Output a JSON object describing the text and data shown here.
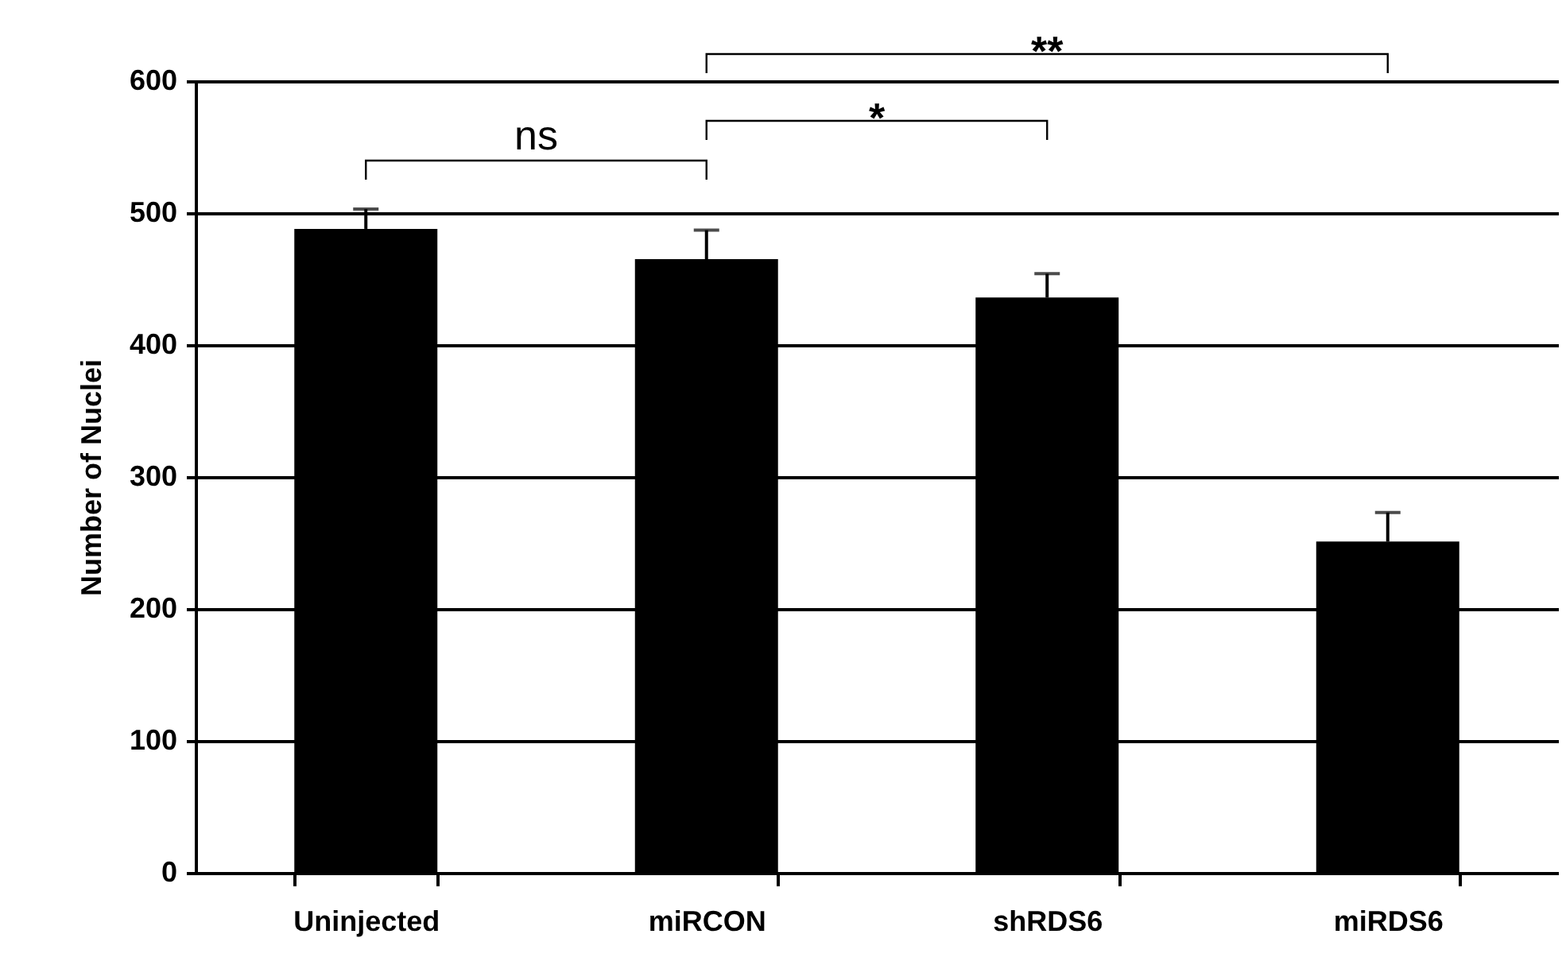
{
  "chart_data": {
    "type": "bar",
    "ylabel": "Number of Nuclei",
    "categories": [
      "Uninjected",
      "miRCON",
      "shRDS6",
      "miRDS6"
    ],
    "values": [
      488,
      465,
      436,
      251
    ],
    "errors": [
      [
        488,
        503
      ],
      [
        465,
        487
      ],
      [
        436,
        454
      ],
      [
        251,
        273
      ]
    ],
    "color": "#000000",
    "ylim": [
      0,
      600
    ],
    "yticks": [
      0,
      100,
      200,
      300,
      400,
      500,
      600
    ],
    "grid": "y",
    "annotations": [
      "ns",
      "*",
      "**"
    ]
  }
}
